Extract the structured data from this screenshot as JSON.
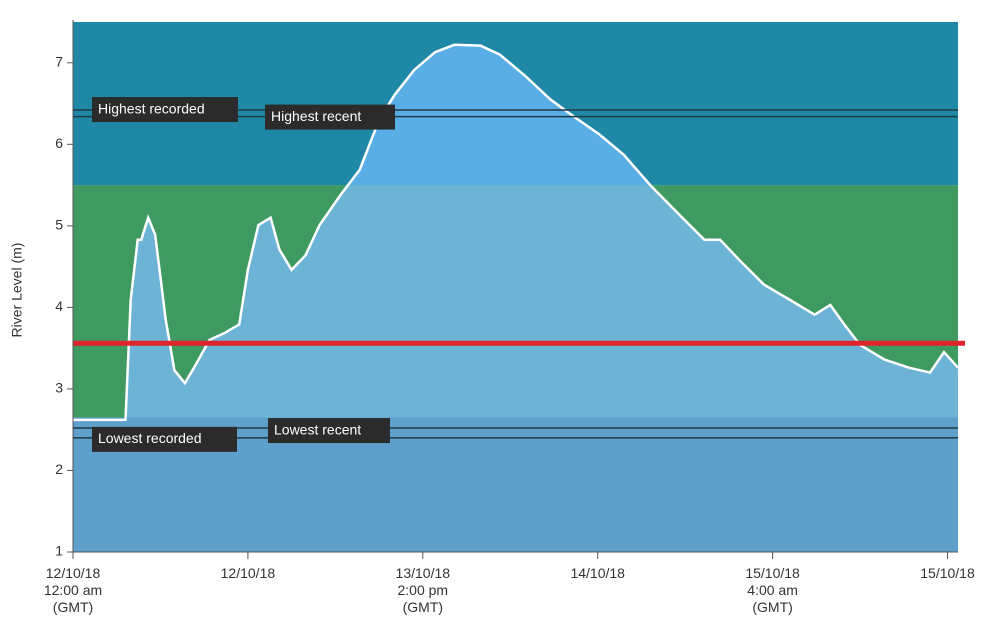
{
  "chart_data": {
    "type": "area",
    "y_label": "River Level (m)",
    "x": [
      0,
      0.3,
      0.33,
      0.37,
      0.39,
      0.43,
      0.47,
      0.53,
      0.58,
      0.64,
      0.7,
      0.78,
      0.87,
      0.95,
      1.0,
      1.06,
      1.13,
      1.18,
      1.25,
      1.33,
      1.41,
      1.53,
      1.64,
      1.75,
      1.84,
      1.95,
      2.07,
      2.18,
      2.33,
      2.44,
      2.58,
      2.73,
      2.87,
      3.01,
      3.15,
      3.3,
      3.47,
      3.61,
      3.7,
      3.81,
      3.95,
      4.1,
      4.24,
      4.33,
      4.41,
      4.5,
      4.64,
      4.78,
      4.9,
      4.98,
      5.06
    ],
    "values": [
      2.62,
      2.62,
      4.09,
      4.83,
      4.83,
      5.1,
      4.89,
      3.85,
      3.23,
      3.07,
      3.29,
      3.6,
      3.69,
      3.79,
      4.46,
      5.01,
      5.1,
      4.71,
      4.46,
      4.64,
      5.01,
      5.38,
      5.69,
      6.3,
      6.61,
      6.91,
      7.13,
      7.22,
      7.21,
      7.1,
      6.85,
      6.55,
      6.33,
      6.12,
      5.87,
      5.5,
      5.13,
      4.83,
      4.83,
      4.58,
      4.28,
      4.09,
      3.91,
      4.03,
      3.79,
      3.54,
      3.36,
      3.26,
      3.2,
      3.45,
      3.26
    ],
    "color": "#ffffff",
    "xlim": [
      0,
      5.06
    ],
    "xticks": [
      {
        "value": 0,
        "label": "12/10/18\n12:00 am\n(GMT)"
      },
      {
        "value": 1,
        "label": "12/10/18"
      },
      {
        "value": 2,
        "label": "13/10/18\n2:00 pm\n(GMT)"
      },
      {
        "value": 3,
        "label": "14/10/18"
      },
      {
        "value": 4,
        "label": "15/10/18\n4:00 am\n(GMT)"
      },
      {
        "value": 5,
        "label": "15/10/18"
      }
    ],
    "ylim": [
      1,
      7.5
    ],
    "yticks": [
      1,
      2,
      3,
      4,
      5,
      6,
      7
    ],
    "bands": [
      {
        "from": 1,
        "to": 2.65,
        "color": "#5b9cc6",
        "area_color": "#5e9fcb"
      },
      {
        "from": 2.65,
        "to": 5.5,
        "color": "#3f9a62",
        "area_color": "#6cb3d5"
      },
      {
        "from": 5.5,
        "to": 7.5,
        "color": "#1e88a6",
        "area_color": "#5aaee6"
      }
    ],
    "reference_lines": [
      {
        "label": "Highest recorded",
        "value": 6.42
      },
      {
        "label": "Highest recent",
        "value": 6.34
      },
      {
        "label": "Lowest recorded",
        "value": 2.4
      },
      {
        "label": "Lowest recent",
        "value": 2.52
      }
    ],
    "threshold": {
      "value": 3.56,
      "color": "#e0242b"
    }
  }
}
